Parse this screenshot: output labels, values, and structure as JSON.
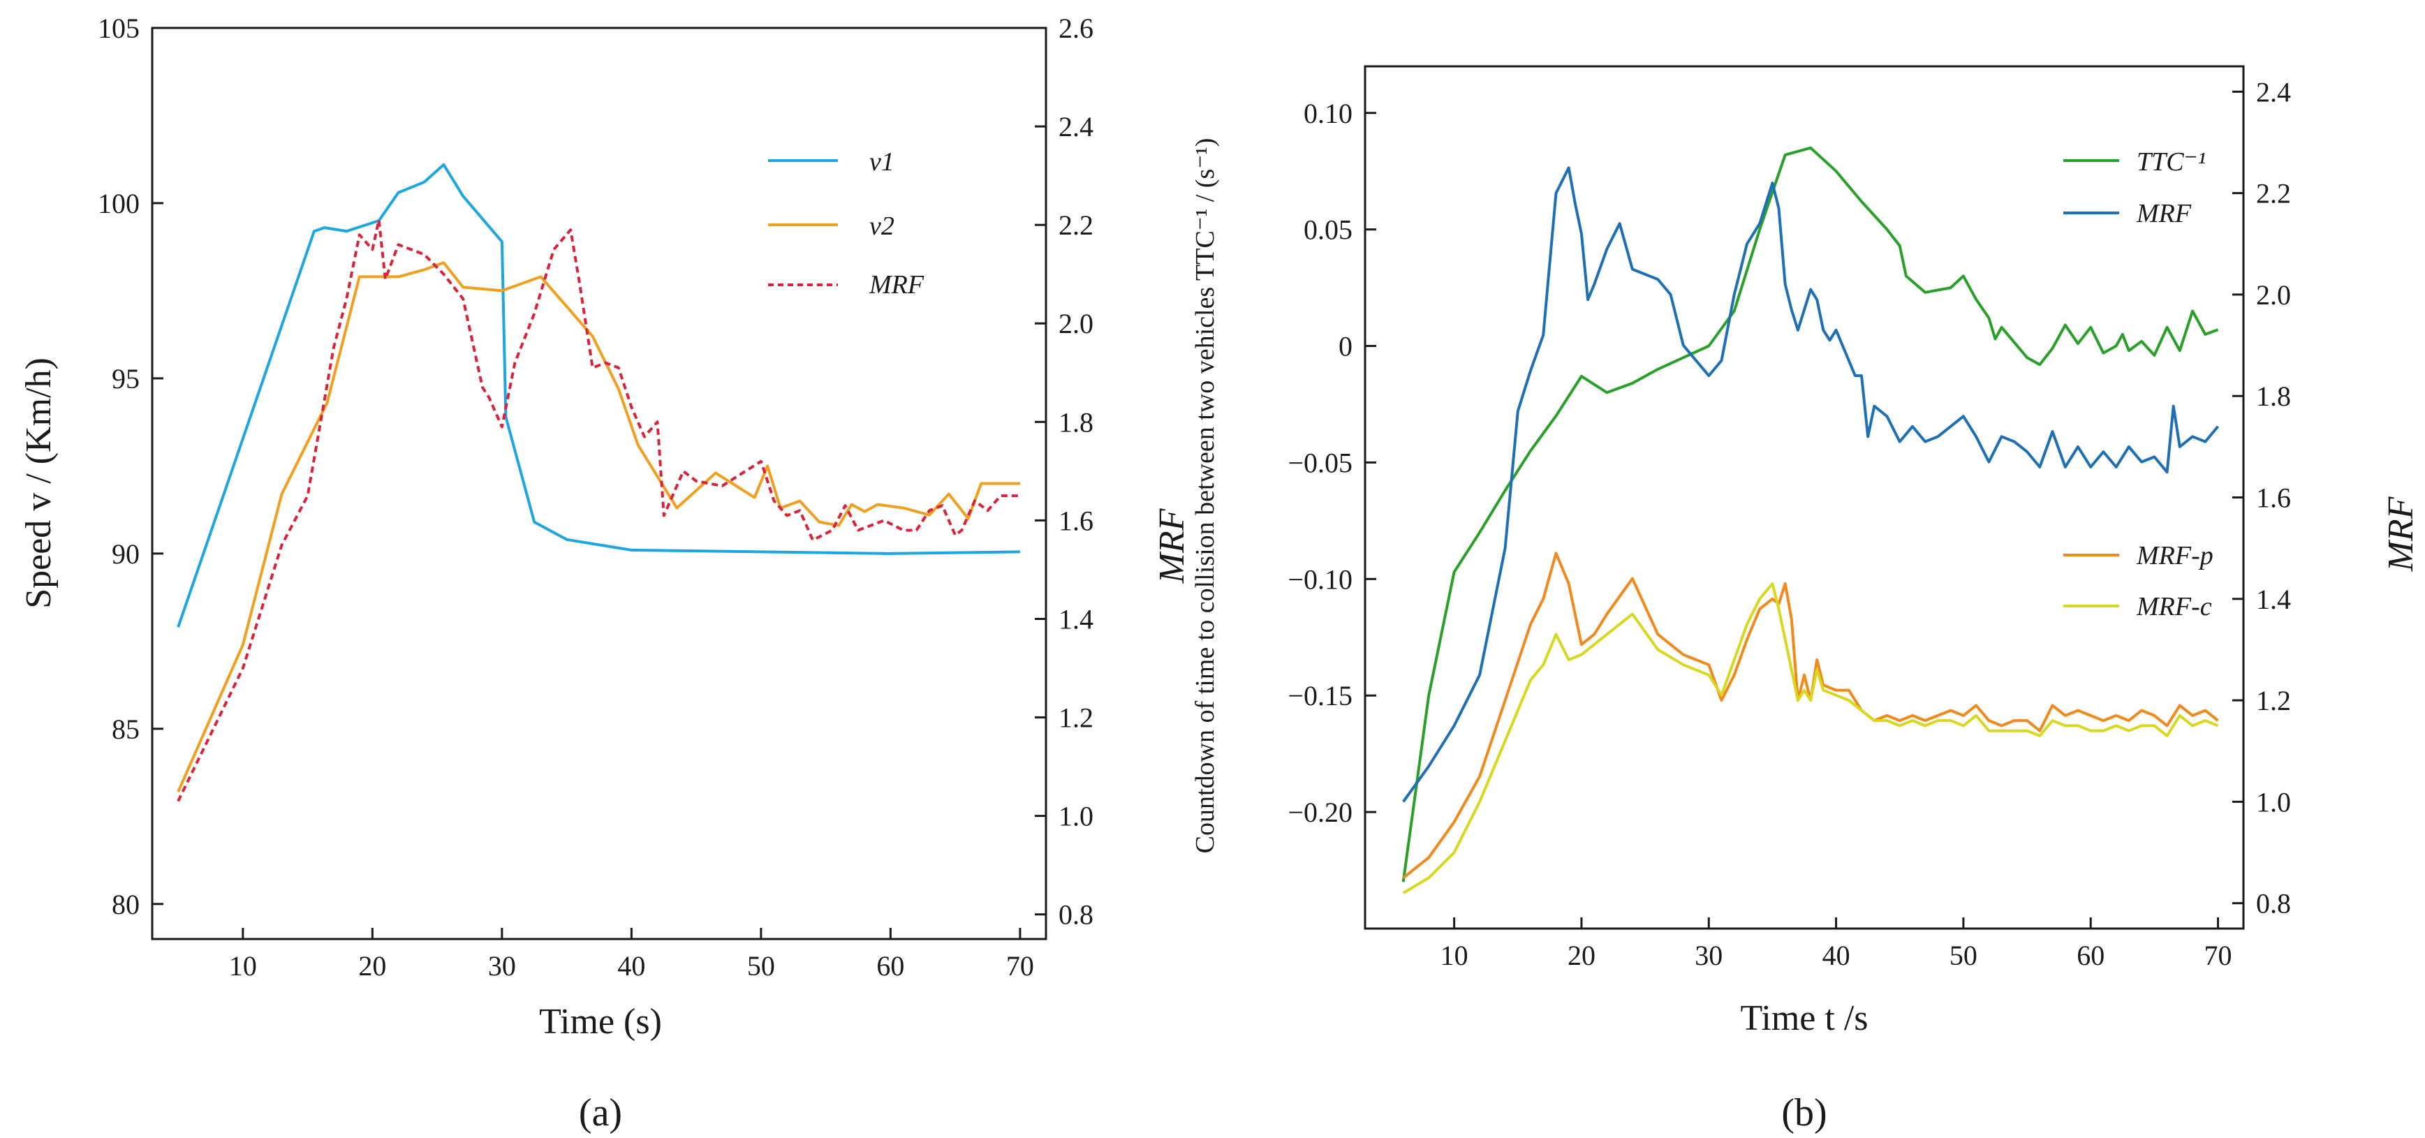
{
  "panel_labels": {
    "a": "(a)",
    "b": "(b)"
  },
  "chart_data": [
    {
      "type": "line",
      "panel": "(a)",
      "xlabel": "Time (s)",
      "ylabel": "Speed v / (Km/h)",
      "ylabel_right": "MRF",
      "xlim": [
        3,
        72
      ],
      "ylim": [
        79,
        105
      ],
      "ylim_right": [
        0.75,
        2.6
      ],
      "xticks": [
        10,
        20,
        30,
        40,
        50,
        60,
        70
      ],
      "yticks": [
        80,
        85,
        90,
        95,
        100,
        105
      ],
      "yticks_right": [
        0.8,
        1.0,
        1.2,
        1.4,
        1.6,
        1.8,
        2.0,
        2.2,
        2.4,
        2.6
      ],
      "yticks_right_labels": [
        "0.8",
        "1.0",
        "1.2",
        "1.4",
        "1.6",
        "1.8",
        "2.0",
        "2.2",
        "2.4",
        "2.6"
      ],
      "legend_position": "top-right",
      "series": [
        {
          "name": "v1",
          "color": "#1ea6e0",
          "dash": false,
          "axis": "left",
          "x": [
            5,
            15.5,
            16.3,
            18,
            20.5,
            22,
            24,
            25.5,
            27,
            30,
            30.3,
            32.5,
            35,
            40,
            50,
            60,
            70
          ],
          "y": [
            87.9,
            99.2,
            99.3,
            99.2,
            99.5,
            100.3,
            100.6,
            101.1,
            100.2,
            98.9,
            93.9,
            90.9,
            90.4,
            90.1,
            90.05,
            90.0,
            90.05
          ]
        },
        {
          "name": "v2",
          "color": "#f0a020",
          "dash": false,
          "axis": "left",
          "x": [
            5,
            10,
            13,
            16.5,
            19,
            20.5,
            22,
            24,
            25.5,
            27,
            30,
            33,
            37,
            39,
            40.5,
            43.5,
            46.5,
            49.5,
            50.5,
            51.5,
            53,
            54.5,
            56,
            57,
            58,
            59,
            61,
            63,
            64.5,
            66,
            67,
            70
          ],
          "y": [
            83.2,
            87.4,
            91.7,
            94.3,
            97.9,
            97.9,
            97.9,
            98.1,
            98.3,
            97.6,
            97.5,
            97.9,
            96.2,
            94.7,
            93.1,
            91.3,
            92.3,
            91.6,
            92.5,
            91.3,
            91.5,
            90.9,
            90.8,
            91.4,
            91.2,
            91.4,
            91.3,
            91.1,
            91.7,
            91.0,
            92.0,
            92.0
          ]
        },
        {
          "name": "MRF",
          "color": "#d8243a",
          "dash": true,
          "axis": "right",
          "x": [
            5,
            10,
            13,
            15,
            17,
            18,
            19,
            20,
            20.5,
            21,
            22,
            24,
            25.5,
            27,
            28.5,
            29,
            30,
            31,
            32.5,
            34,
            35.3,
            36,
            37,
            38,
            39,
            40,
            41,
            42,
            42.5,
            44,
            45,
            47,
            50,
            51,
            52,
            53,
            54,
            55.5,
            56.5,
            57.5,
            58.5,
            59.5,
            61,
            62,
            63,
            64,
            65,
            65.5,
            66.5,
            67.5,
            68.5,
            70
          ],
          "y": [
            1.03,
            1.3,
            1.55,
            1.65,
            1.95,
            2.05,
            2.18,
            2.15,
            2.21,
            2.09,
            2.16,
            2.14,
            2.1,
            2.05,
            1.87,
            1.85,
            1.79,
            1.92,
            2.02,
            2.15,
            2.19,
            2.08,
            1.91,
            1.92,
            1.91,
            1.83,
            1.77,
            1.8,
            1.61,
            1.7,
            1.68,
            1.67,
            1.72,
            1.64,
            1.61,
            1.62,
            1.56,
            1.58,
            1.63,
            1.58,
            1.59,
            1.6,
            1.58,
            1.58,
            1.62,
            1.63,
            1.57,
            1.58,
            1.64,
            1.62,
            1.65,
            1.65
          ]
        }
      ]
    },
    {
      "type": "line",
      "panel": "(b)",
      "xlabel": "Time t /s",
      "ylabel": "Countdown of time to collision  between two vehicles TTC⁻¹ / (s⁻¹)",
      "ylabel_right": "MRF",
      "xlim": [
        3,
        72
      ],
      "ylim": [
        -0.25,
        0.12
      ],
      "ylim_right": [
        0.75,
        2.45
      ],
      "xticks": [
        10,
        20,
        30,
        40,
        50,
        60,
        70
      ],
      "yticks": [
        -0.2,
        -0.15,
        -0.1,
        -0.05,
        0,
        0.05,
        0.1
      ],
      "yticks_labels": [
        "−0.20",
        "−0.15",
        "−0.10",
        "−0.05",
        "0",
        "0.05",
        "0.10"
      ],
      "yticks_right": [
        0.8,
        1.0,
        1.2,
        1.4,
        1.6,
        1.8,
        2.0,
        2.2,
        2.4
      ],
      "yticks_right_labels": [
        "0.8",
        "1.0",
        "1.2",
        "1.4",
        "1.6",
        "1.8",
        "2.0",
        "2.2",
        "2.4"
      ],
      "legend_top_position": "top-right",
      "legend_bottom_position": "middle-right",
      "series": [
        {
          "name": "TTC⁻¹",
          "color": "#2aa02a",
          "axis": "left",
          "x": [
            6,
            8,
            10,
            12,
            14,
            16,
            18,
            20,
            22,
            24,
            26,
            28,
            30,
            32,
            34,
            36,
            38,
            40,
            42,
            44,
            45,
            45.5,
            47,
            49,
            50,
            51,
            52,
            52.5,
            53,
            55,
            56,
            57,
            58,
            59,
            60,
            61,
            62,
            62.5,
            63,
            64,
            65,
            66,
            67,
            68,
            69,
            70
          ],
          "y": [
            -0.23,
            -0.15,
            -0.097,
            -0.08,
            -0.062,
            -0.045,
            -0.03,
            -0.013,
            -0.02,
            -0.016,
            -0.01,
            -0.005,
            0.0,
            0.015,
            0.05,
            0.082,
            0.085,
            0.075,
            0.062,
            0.05,
            0.043,
            0.03,
            0.023,
            0.025,
            0.03,
            0.02,
            0.012,
            0.003,
            0.008,
            -0.005,
            -0.008,
            -0.001,
            0.009,
            0.001,
            0.008,
            -0.003,
            0.0,
            0.005,
            -0.002,
            0.002,
            -0.004,
            0.008,
            -0.002,
            0.015,
            0.005,
            0.007
          ]
        },
        {
          "name": "MRF",
          "color": "#1f6fb4",
          "axis": "right",
          "x": [
            6,
            8,
            10,
            12,
            14,
            15,
            16,
            17,
            18,
            19,
            19.5,
            20,
            20.5,
            21,
            22,
            23,
            24,
            25,
            26,
            27,
            28,
            29,
            30,
            31,
            32,
            33,
            34,
            35,
            35.5,
            36,
            36.5,
            37,
            37.5,
            38,
            38.5,
            39,
            39.5,
            40,
            41,
            41.5,
            42,
            42.5,
            43,
            44,
            45,
            46,
            47,
            48,
            49,
            50,
            51,
            52,
            53,
            54,
            55,
            56,
            57,
            58,
            59,
            60,
            61,
            62,
            63,
            64,
            65,
            66,
            66.5,
            67,
            68,
            69,
            70
          ],
          "y": [
            1.0,
            1.07,
            1.15,
            1.25,
            1.5,
            1.77,
            1.85,
            1.92,
            2.2,
            2.25,
            2.18,
            2.12,
            1.99,
            2.02,
            2.09,
            2.14,
            2.05,
            2.04,
            2.03,
            2.0,
            1.9,
            1.87,
            1.84,
            1.87,
            2.0,
            2.1,
            2.14,
            2.22,
            2.17,
            2.02,
            1.97,
            1.93,
            1.97,
            2.01,
            1.99,
            1.93,
            1.91,
            1.93,
            1.87,
            1.84,
            1.84,
            1.72,
            1.78,
            1.76,
            1.71,
            1.74,
            1.71,
            1.72,
            1.74,
            1.76,
            1.72,
            1.67,
            1.72,
            1.71,
            1.69,
            1.66,
            1.73,
            1.66,
            1.7,
            1.66,
            1.69,
            1.66,
            1.7,
            1.67,
            1.68,
            1.65,
            1.78,
            1.7,
            1.72,
            1.71,
            1.74
          ]
        },
        {
          "name": "MRF-p",
          "color": "#f08a1c",
          "axis": "right",
          "x": [
            6,
            8,
            10,
            12,
            14,
            16,
            17,
            18,
            19,
            20,
            21,
            22,
            24,
            26,
            28,
            30,
            31,
            32,
            33,
            34,
            35,
            35.5,
            36,
            36.5,
            37,
            37.5,
            38,
            38.5,
            39,
            40,
            41,
            42,
            43,
            44,
            45,
            46,
            47,
            48,
            49,
            50,
            51,
            52,
            53,
            54,
            55,
            56,
            57,
            58,
            59,
            60,
            61,
            62,
            63,
            64,
            65,
            66,
            67,
            68,
            69,
            70
          ],
          "y": [
            0.85,
            0.89,
            0.96,
            1.05,
            1.2,
            1.35,
            1.4,
            1.49,
            1.43,
            1.31,
            1.33,
            1.37,
            1.44,
            1.33,
            1.29,
            1.27,
            1.2,
            1.25,
            1.32,
            1.38,
            1.4,
            1.39,
            1.43,
            1.36,
            1.2,
            1.25,
            1.2,
            1.28,
            1.23,
            1.22,
            1.22,
            1.18,
            1.16,
            1.17,
            1.16,
            1.17,
            1.16,
            1.17,
            1.18,
            1.17,
            1.19,
            1.16,
            1.15,
            1.16,
            1.16,
            1.14,
            1.19,
            1.17,
            1.18,
            1.17,
            1.16,
            1.17,
            1.16,
            1.18,
            1.17,
            1.15,
            1.19,
            1.17,
            1.18,
            1.16
          ]
        },
        {
          "name": "MRF-c",
          "color": "#d8d820",
          "axis": "right",
          "x": [
            6,
            8,
            10,
            12,
            14,
            16,
            17,
            18,
            19,
            20,
            21,
            22,
            24,
            26,
            28,
            30,
            31,
            32,
            33,
            34,
            35,
            35.5,
            36,
            36.5,
            37,
            37.5,
            38,
            38.5,
            39,
            40,
            41,
            42,
            43,
            44,
            45,
            46,
            47,
            48,
            49,
            50,
            51,
            52,
            53,
            54,
            55,
            56,
            57,
            58,
            59,
            60,
            61,
            62,
            63,
            64,
            65,
            66,
            67,
            68,
            69,
            70
          ],
          "y": [
            0.82,
            0.85,
            0.9,
            1.0,
            1.12,
            1.24,
            1.27,
            1.33,
            1.28,
            1.29,
            1.31,
            1.33,
            1.37,
            1.3,
            1.27,
            1.25,
            1.21,
            1.28,
            1.35,
            1.4,
            1.43,
            1.38,
            1.32,
            1.26,
            1.2,
            1.22,
            1.2,
            1.26,
            1.22,
            1.21,
            1.2,
            1.18,
            1.16,
            1.16,
            1.15,
            1.16,
            1.15,
            1.16,
            1.16,
            1.15,
            1.17,
            1.14,
            1.14,
            1.14,
            1.14,
            1.13,
            1.16,
            1.15,
            1.15,
            1.14,
            1.14,
            1.15,
            1.14,
            1.15,
            1.15,
            1.13,
            1.17,
            1.15,
            1.16,
            1.15
          ]
        }
      ]
    }
  ]
}
